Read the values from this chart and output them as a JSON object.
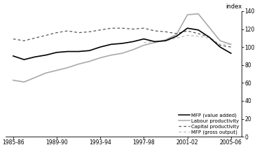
{
  "x_labels": [
    "1985-86",
    "1989-90",
    "1993-94",
    "1997-98",
    "2001-02",
    "2005-06"
  ],
  "x_tick_pos": [
    1985.5,
    1989.5,
    1993.5,
    1997.5,
    2001.5,
    2005.5
  ],
  "x_values": [
    1985.5,
    1986.5,
    1987.5,
    1988.5,
    1989.5,
    1990.5,
    1991.5,
    1992.5,
    1993.5,
    1994.5,
    1995.5,
    1996.5,
    1997.5,
    1998.5,
    1999.5,
    2000.5,
    2001.5,
    2002.5,
    2003.5,
    2004.5,
    2005.5
  ],
  "mfp_value_added": [
    90,
    86,
    89,
    91,
    94,
    95,
    95,
    96,
    100,
    103,
    104,
    106,
    109,
    106,
    107,
    112,
    121,
    119,
    111,
    100,
    93
  ],
  "labour_productivity": [
    63,
    61,
    66,
    71,
    74,
    77,
    81,
    84,
    88,
    91,
    93,
    97,
    102,
    105,
    108,
    114,
    136,
    137,
    122,
    107,
    103
  ],
  "capital_productivity": [
    109,
    107,
    110,
    113,
    116,
    118,
    116,
    117,
    119,
    121,
    121,
    120,
    121,
    118,
    117,
    115,
    118,
    115,
    111,
    102,
    100
  ],
  "mfp_gross_output": [
    null,
    null,
    null,
    null,
    null,
    null,
    null,
    null,
    null,
    null,
    null,
    null,
    105,
    106,
    107,
    110,
    113,
    112,
    110,
    103,
    103
  ],
  "ylim": [
    0,
    140
  ],
  "yticks": [
    0,
    20,
    40,
    60,
    80,
    100,
    120,
    140
  ],
  "xlim": [
    1984.8,
    2006.5
  ],
  "ylabel": "index",
  "background_color": "#ffffff",
  "mfp_va_color": "#000000",
  "labour_color": "#aaaaaa",
  "capital_color": "#555555",
  "mfp_go_color": "#bbbbbb"
}
